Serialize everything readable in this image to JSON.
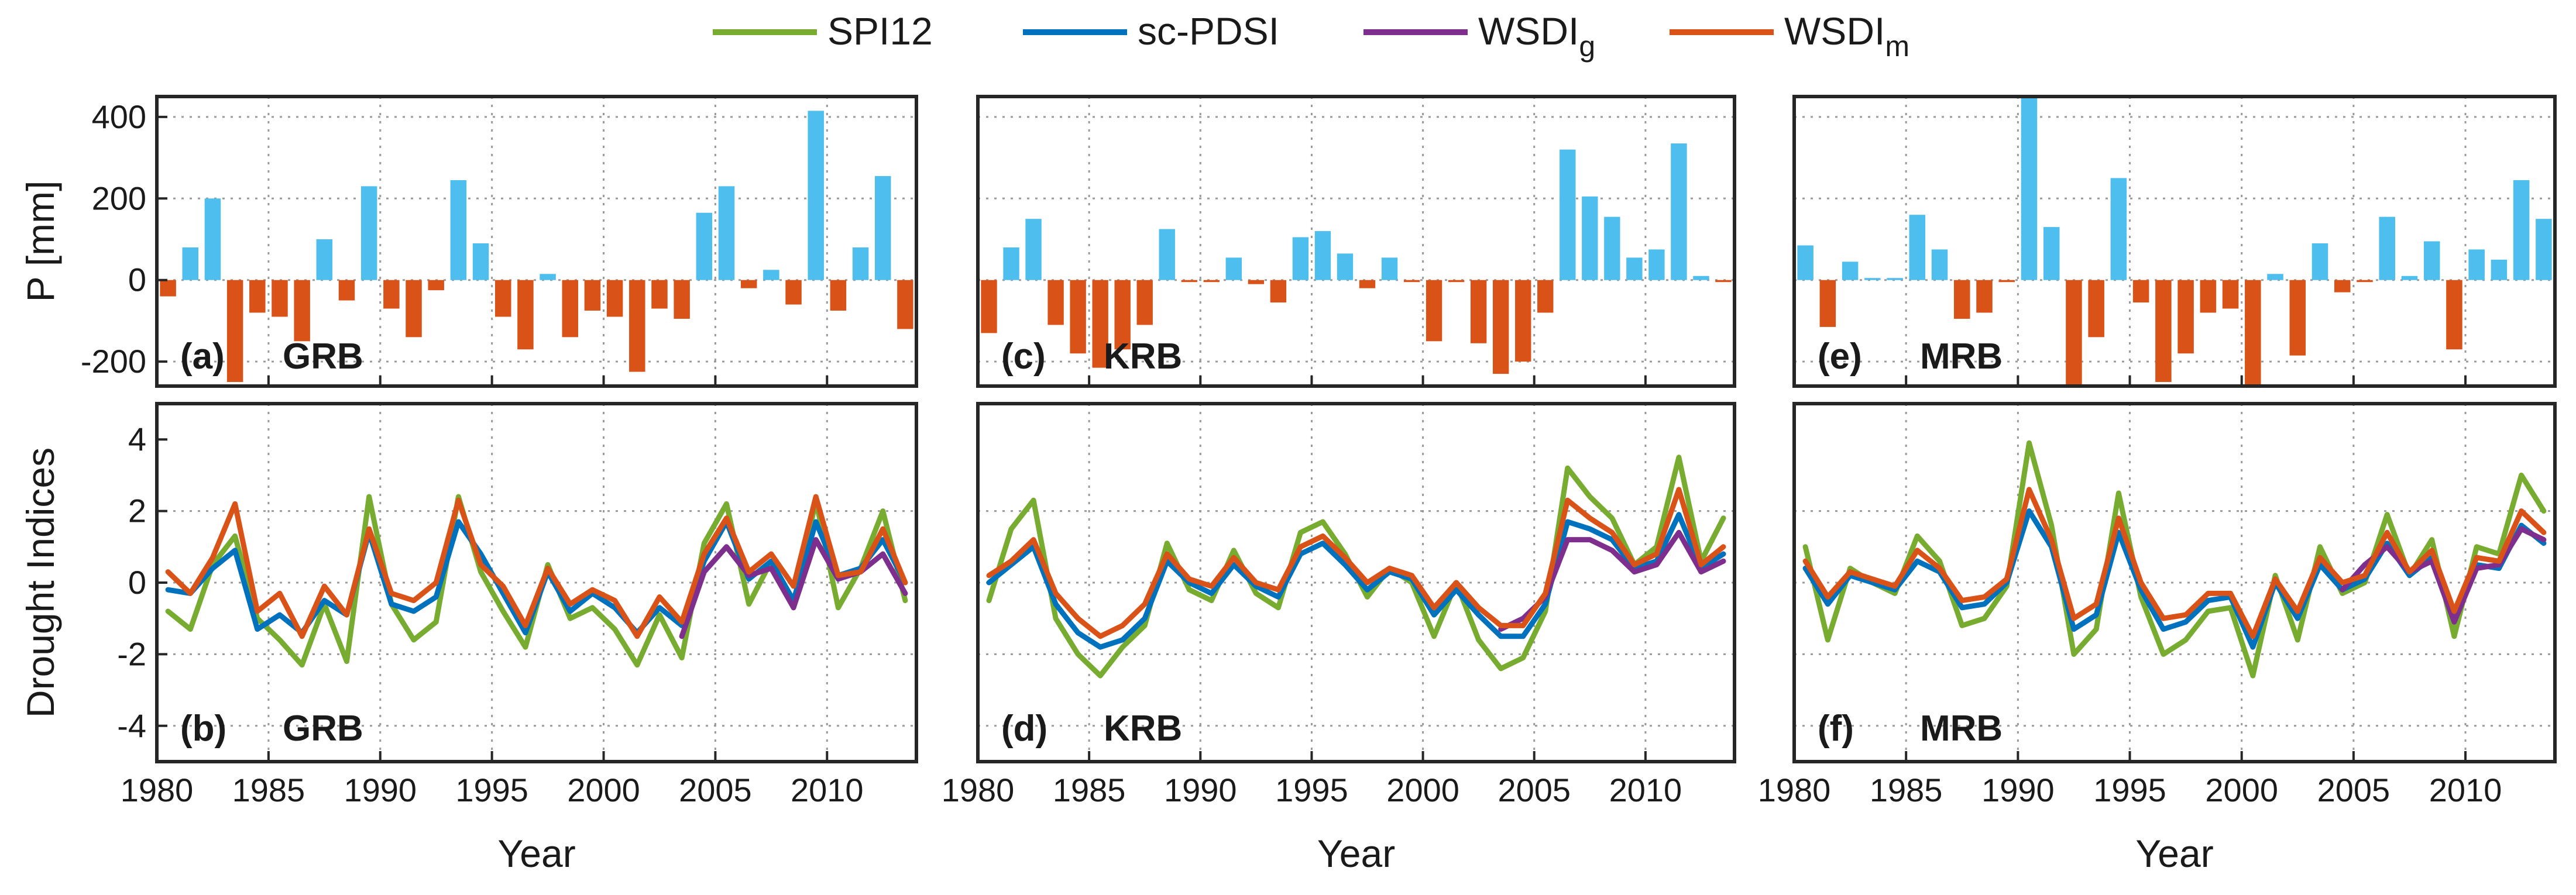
{
  "chart_data": {
    "type": "bar+line",
    "legend": {
      "placement": "top",
      "entries": [
        {
          "label": "SPI12",
          "sub": "",
          "color": "#77ac30"
        },
        {
          "label": "sc-PDSI",
          "sub": "",
          "color": "#0072bd"
        },
        {
          "label": "WSDI",
          "sub": "g",
          "color": "#7e2f8e"
        },
        {
          "label": "WSDI",
          "sub": "m",
          "color": "#d95319"
        }
      ]
    },
    "xlabel": "Year",
    "xticks": [
      1980,
      1985,
      1990,
      1995,
      2000,
      2005,
      2010
    ],
    "xlim": [
      1980,
      2014
    ],
    "colors": {
      "positive_bar": "#4dbeee",
      "negative_bar": "#d95319"
    },
    "top_row": {
      "ylabel": "P [mm]",
      "yticks": [
        -200,
        0,
        200,
        400
      ],
      "ylim": [
        -260,
        450
      ]
    },
    "bottom_row": {
      "ylabel": "Drought Indices",
      "yticks": [
        -4,
        -2,
        0,
        2,
        4
      ],
      "ylim": [
        -5,
        5
      ]
    },
    "columns": [
      {
        "basin": "GRB",
        "top_tag": "(a)",
        "bottom_tag": "(b)",
        "years": [
          1980,
          1981,
          1982,
          1983,
          1984,
          1985,
          1986,
          1987,
          1988,
          1989,
          1990,
          1991,
          1992,
          1993,
          1994,
          1995,
          1996,
          1997,
          1998,
          1999,
          2000,
          2001,
          2002,
          2003,
          2004,
          2005,
          2006,
          2007,
          2008,
          2009,
          2010,
          2011,
          2012,
          2013
        ],
        "p_anomaly": [
          -40,
          80,
          200,
          -250,
          -80,
          -90,
          -150,
          100,
          -50,
          230,
          -70,
          -140,
          -25,
          245,
          90,
          -90,
          -170,
          15,
          -140,
          -75,
          -90,
          -225,
          -70,
          -95,
          165,
          230,
          -20,
          25,
          -60,
          415,
          -75,
          80,
          255,
          -120
        ],
        "indices": {
          "SPI12": [
            -0.8,
            -1.3,
            0.5,
            1.3,
            -1.0,
            -1.6,
            -2.3,
            -0.6,
            -2.2,
            2.4,
            -0.6,
            -1.6,
            -1.1,
            2.4,
            0.3,
            -0.8,
            -1.8,
            0.5,
            -1.0,
            -0.7,
            -1.3,
            -2.3,
            -0.9,
            -2.1,
            1.1,
            2.2,
            -0.6,
            0.6,
            -0.7,
            2.3,
            -0.7,
            0.4,
            2.0,
            -0.5
          ],
          "sc-PDSI": [
            -0.2,
            -0.3,
            0.4,
            0.9,
            -1.3,
            -0.9,
            -1.4,
            -0.5,
            -0.9,
            1.4,
            -0.6,
            -0.8,
            -0.4,
            1.7,
            0.8,
            -0.3,
            -1.4,
            0.3,
            -0.8,
            -0.3,
            -0.7,
            -1.4,
            -0.7,
            -1.2,
            0.6,
            1.7,
            0.1,
            0.6,
            -0.5,
            1.7,
            0.2,
            0.4,
            1.2,
            0.0
          ],
          "WSDI_g": [
            null,
            null,
            null,
            null,
            null,
            null,
            null,
            null,
            null,
            null,
            null,
            null,
            null,
            null,
            null,
            null,
            null,
            null,
            null,
            null,
            null,
            null,
            null,
            -1.5,
            0.3,
            1.0,
            0.2,
            0.4,
            -0.7,
            1.2,
            0.1,
            0.3,
            0.8,
            -0.3
          ],
          "WSDI_m": [
            0.3,
            -0.3,
            0.7,
            2.2,
            -0.8,
            -0.3,
            -1.5,
            -0.1,
            -0.9,
            1.5,
            -0.3,
            -0.5,
            0.0,
            2.3,
            0.5,
            -0.1,
            -1.2,
            0.4,
            -0.6,
            -0.2,
            -0.5,
            -1.5,
            -0.4,
            -1.1,
            0.8,
            1.8,
            0.3,
            0.8,
            -0.1,
            2.4,
            0.2,
            0.3,
            1.5,
            0.0
          ]
        }
      },
      {
        "basin": "KRB",
        "top_tag": "(c)",
        "bottom_tag": "(d)",
        "years": [
          1980,
          1981,
          1982,
          1983,
          1984,
          1985,
          1986,
          1987,
          1988,
          1989,
          1990,
          1991,
          1992,
          1993,
          1994,
          1995,
          1996,
          1997,
          1998,
          1999,
          2000,
          2001,
          2002,
          2003,
          2004,
          2005,
          2006,
          2007,
          2008,
          2009,
          2010,
          2011,
          2012,
          2013
        ],
        "p_anomaly": [
          -130,
          80,
          150,
          -110,
          -180,
          -215,
          -170,
          -110,
          125,
          -5,
          -5,
          55,
          -10,
          -55,
          105,
          120,
          65,
          -20,
          55,
          -5,
          -150,
          -5,
          -155,
          -230,
          -200,
          -80,
          320,
          205,
          155,
          55,
          75,
          335,
          10,
          -5
        ],
        "indices": {
          "SPI12": [
            -0.5,
            1.5,
            2.3,
            -1.0,
            -2.0,
            -2.6,
            -1.8,
            -1.2,
            1.1,
            -0.2,
            -0.5,
            0.9,
            -0.3,
            -0.7,
            1.4,
            1.7,
            0.8,
            -0.4,
            0.4,
            0.0,
            -1.5,
            0.0,
            -1.6,
            -2.4,
            -2.1,
            -0.8,
            3.2,
            2.4,
            1.8,
            0.5,
            1.0,
            3.5,
            0.6,
            1.8
          ],
          "sc-PDSI": [
            0.0,
            0.5,
            1.0,
            -0.6,
            -1.4,
            -1.8,
            -1.6,
            -1.0,
            0.6,
            0.0,
            -0.3,
            0.5,
            -0.1,
            -0.4,
            0.8,
            1.1,
            0.5,
            -0.2,
            0.3,
            0.1,
            -0.9,
            -0.2,
            -0.9,
            -1.5,
            -1.5,
            -0.6,
            1.7,
            1.5,
            1.2,
            0.4,
            0.6,
            1.9,
            0.4,
            0.8
          ],
          "WSDI_g": [
            null,
            null,
            null,
            null,
            null,
            null,
            null,
            null,
            null,
            null,
            null,
            null,
            null,
            null,
            null,
            null,
            null,
            null,
            null,
            null,
            null,
            null,
            null,
            -1.3,
            -1.0,
            -0.4,
            1.2,
            1.2,
            0.9,
            0.3,
            0.5,
            1.4,
            0.3,
            0.6
          ],
          "WSDI_m": [
            0.2,
            0.6,
            1.2,
            -0.3,
            -1.0,
            -1.5,
            -1.2,
            -0.6,
            0.8,
            0.1,
            -0.1,
            0.7,
            0.0,
            -0.2,
            1.0,
            1.3,
            0.7,
            0.0,
            0.4,
            0.2,
            -0.7,
            0.0,
            -0.7,
            -1.2,
            -1.2,
            -0.3,
            2.3,
            1.8,
            1.4,
            0.5,
            0.8,
            2.6,
            0.5,
            1.0
          ]
        }
      },
      {
        "basin": "MRB",
        "top_tag": "(e)",
        "bottom_tag": "(f)",
        "years": [
          1980,
          1981,
          1982,
          1983,
          1984,
          1985,
          1986,
          1987,
          1988,
          1989,
          1990,
          1991,
          1992,
          1993,
          1994,
          1995,
          1996,
          1997,
          1998,
          1999,
          2000,
          2001,
          2002,
          2003,
          2004,
          2005,
          2006,
          2007,
          2008,
          2009,
          2010,
          2011,
          2012,
          2013
        ],
        "p_anomaly": [
          85,
          -115,
          45,
          5,
          5,
          160,
          75,
          -95,
          -80,
          -5,
          455,
          130,
          -260,
          -140,
          250,
          -55,
          -250,
          -180,
          -80,
          -70,
          -340,
          15,
          -185,
          90,
          -30,
          -5,
          155,
          10,
          95,
          -170,
          75,
          50,
          245,
          150
        ],
        "indices": {
          "SPI12": [
            1.0,
            -1.6,
            0.4,
            0.0,
            -0.3,
            1.3,
            0.6,
            -1.2,
            -1.0,
            -0.1,
            3.9,
            1.6,
            -2.0,
            -1.3,
            2.5,
            -0.4,
            -2.0,
            -1.6,
            -0.8,
            -0.7,
            -2.6,
            0.2,
            -1.6,
            1.0,
            -0.3,
            0.0,
            1.9,
            0.2,
            1.2,
            -1.5,
            1.0,
            0.8,
            3.0,
            2.0
          ],
          "sc-PDSI": [
            0.4,
            -0.6,
            0.2,
            0.0,
            -0.2,
            0.6,
            0.3,
            -0.7,
            -0.6,
            0.0,
            2.0,
            1.0,
            -1.3,
            -0.9,
            1.4,
            -0.2,
            -1.3,
            -1.1,
            -0.5,
            -0.4,
            -1.8,
            0.0,
            -1.0,
            0.5,
            -0.2,
            0.1,
            1.1,
            0.2,
            0.7,
            -1.0,
            0.5,
            0.4,
            1.6,
            1.1
          ],
          "WSDI_g": [
            null,
            null,
            null,
            null,
            null,
            null,
            null,
            null,
            null,
            null,
            null,
            null,
            null,
            null,
            null,
            null,
            null,
            null,
            null,
            null,
            null,
            null,
            null,
            null,
            -0.2,
            0.5,
            1.0,
            0.3,
            0.6,
            -1.1,
            0.4,
            0.5,
            1.5,
            1.2
          ],
          "WSDI_m": [
            0.6,
            -0.4,
            0.3,
            0.1,
            -0.1,
            0.9,
            0.4,
            -0.5,
            -0.4,
            0.1,
            2.6,
            1.2,
            -1.0,
            -0.6,
            1.8,
            0.0,
            -1.0,
            -0.9,
            -0.3,
            -0.3,
            -1.5,
            0.1,
            -0.8,
            0.7,
            0.0,
            0.2,
            1.4,
            0.3,
            0.9,
            -0.8,
            0.7,
            0.6,
            2.0,
            1.4
          ]
        }
      }
    ]
  }
}
